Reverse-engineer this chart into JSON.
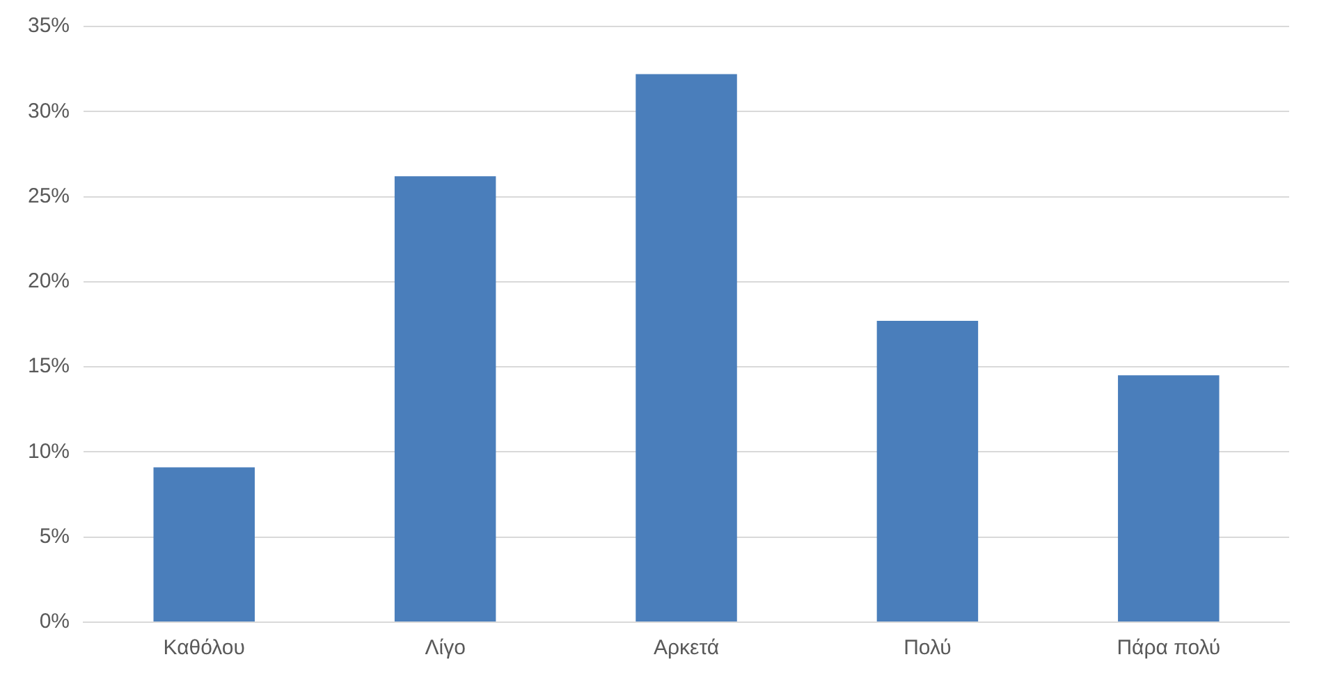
{
  "chart_data": {
    "type": "bar",
    "categories": [
      "Καθόλου",
      "Λίγο",
      "Αρκετά",
      "Πολύ",
      "Πάρα πολύ"
    ],
    "values": [
      9.1,
      26.2,
      32.2,
      17.7,
      14.5
    ],
    "color": "#4a7ebb",
    "ylim": [
      0,
      35
    ],
    "yticks": [
      {
        "value": 0,
        "label": "0%"
      },
      {
        "value": 5,
        "label": "5%"
      },
      {
        "value": 10,
        "label": "10%"
      },
      {
        "value": 15,
        "label": "15%"
      },
      {
        "value": 20,
        "label": "20%"
      },
      {
        "value": 25,
        "label": "25%"
      },
      {
        "value": 30,
        "label": "30%"
      },
      {
        "value": 35,
        "label": "35%"
      }
    ],
    "grid": "y",
    "legend": false
  }
}
